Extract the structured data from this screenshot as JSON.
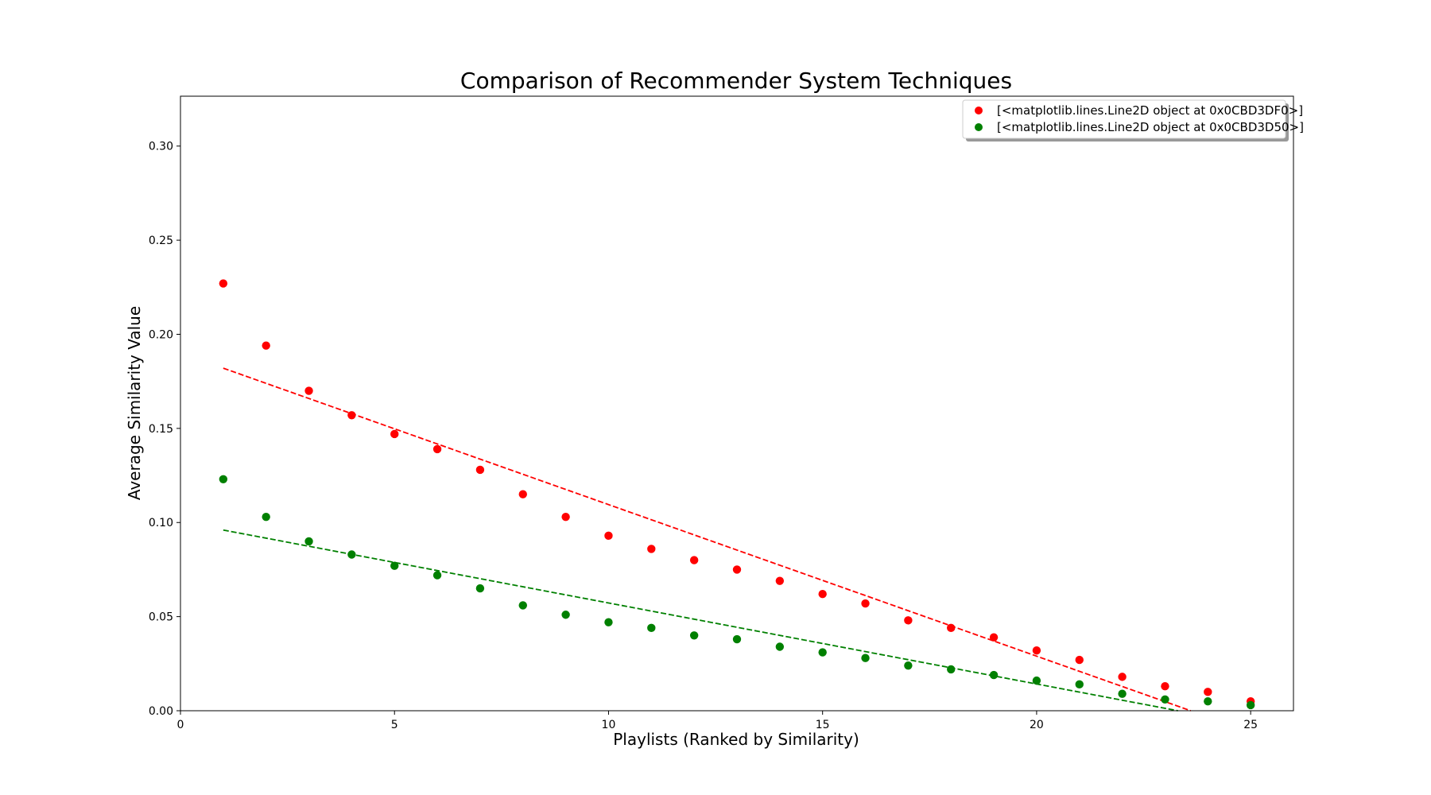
{
  "chart_data": {
    "type": "scatter",
    "title": "Comparison of Recommender System Techniques",
    "xlabel": "Playlists (Ranked by Similarity)",
    "ylabel": "Average Similarity Value",
    "xlim": [
      0,
      26
    ],
    "ylim": [
      0,
      0.3265
    ],
    "xticks": [
      0,
      5,
      10,
      15,
      20,
      25
    ],
    "xtick_labels": [
      "0",
      "5",
      "10",
      "15",
      "20",
      "25"
    ],
    "yticks": [
      0,
      0.05,
      0.1,
      0.15,
      0.2,
      0.25,
      0.3
    ],
    "ytick_labels": [
      "0.00",
      "0.05",
      "0.10",
      "0.15",
      "0.20",
      "0.25",
      "0.30"
    ],
    "grid": false,
    "legend_position": "top-right",
    "series": [
      {
        "name": "[<matplotlib.lines.Line2D object at 0x0CBD3DF0>]",
        "color": "#ff0000",
        "x": [
          1,
          2,
          3,
          4,
          5,
          6,
          7,
          8,
          9,
          10,
          11,
          12,
          13,
          14,
          15,
          16,
          17,
          18,
          19,
          20,
          21,
          22,
          23,
          24,
          25
        ],
        "y": [
          0.227,
          0.194,
          0.17,
          0.157,
          0.147,
          0.139,
          0.128,
          0.115,
          0.103,
          0.093,
          0.086,
          0.08,
          0.075,
          0.069,
          0.062,
          0.057,
          0.048,
          0.044,
          0.039,
          0.032,
          0.027,
          0.018,
          0.013,
          0.01,
          0.005
        ],
        "trendline": {
          "style": "dashed",
          "x": [
            1,
            23.6
          ],
          "y": [
            0.182,
            0.0
          ]
        }
      },
      {
        "name": "[<matplotlib.lines.Line2D object at 0x0CBD3D50>]",
        "color": "#008000",
        "x": [
          1,
          2,
          3,
          4,
          5,
          6,
          7,
          8,
          9,
          10,
          11,
          12,
          13,
          14,
          15,
          16,
          17,
          18,
          19,
          20,
          21,
          22,
          23,
          24,
          25
        ],
        "y": [
          0.123,
          0.103,
          0.09,
          0.083,
          0.077,
          0.072,
          0.065,
          0.056,
          0.051,
          0.047,
          0.044,
          0.04,
          0.038,
          0.034,
          0.031,
          0.028,
          0.024,
          0.022,
          0.019,
          0.016,
          0.014,
          0.009,
          0.006,
          0.005,
          0.003
        ],
        "trendline": {
          "style": "dashed",
          "x": [
            1,
            23.3
          ],
          "y": [
            0.096,
            0.0
          ]
        }
      }
    ]
  }
}
